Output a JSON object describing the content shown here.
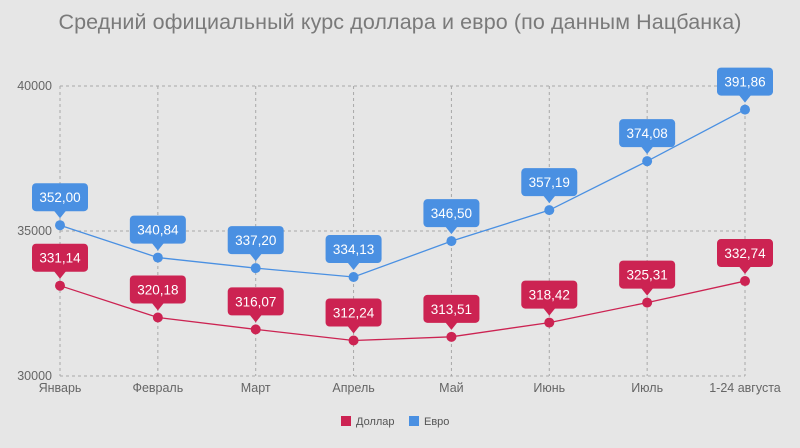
{
  "chart_data": {
    "type": "line",
    "title": "Средний официальный курс доллара и евро (по данным Нацбанка)",
    "categories": [
      "Январь",
      "Февраль",
      "Март",
      "Апрель",
      "Май",
      "Июнь",
      "Июль",
      "1-24 августа"
    ],
    "y_ticks": [
      "30000",
      "35000",
      "40000"
    ],
    "ylim": [
      30000,
      40000
    ],
    "grid": true,
    "legend_position": "bottom-center",
    "series": [
      {
        "name": "Доллар",
        "color": "#cc2352",
        "values": [
          33114,
          32018,
          31607,
          31224,
          31351,
          31842,
          32531,
          33274
        ],
        "labels": [
          "331,14",
          "320,18",
          "316,07",
          "312,24",
          "313,51",
          "318,42",
          "325,31",
          "332,74"
        ]
      },
      {
        "name": "Евро",
        "color": "#4a90e2",
        "values": [
          35200,
          34084,
          33720,
          33413,
          34650,
          35719,
          37408,
          39186
        ],
        "labels": [
          "352,00",
          "340,84",
          "337,20",
          "334,13",
          "346,50",
          "357,19",
          "374,08",
          "391,86"
        ]
      }
    ]
  }
}
